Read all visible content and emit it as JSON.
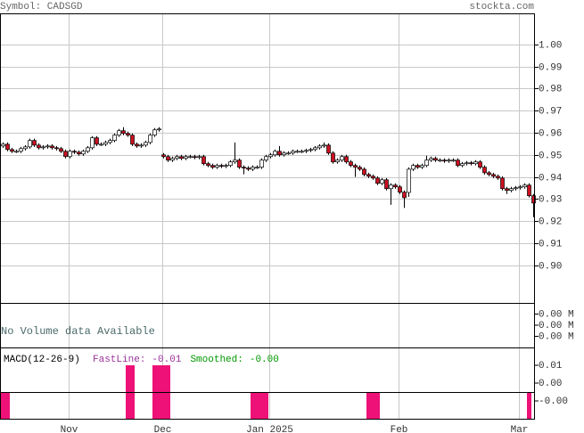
{
  "header": {
    "symbol": "Symbol: CADSGD",
    "site": "stockta.com"
  },
  "chart_data": [
    {
      "type": "candlestick",
      "up_color": "#ffffff",
      "down_color": "#cc1122",
      "grid": true,
      "ylim": [
        0.883,
        1.014
      ],
      "yticks": [
        {
          "value": 0.9,
          "label": "0.90"
        },
        0.91,
        0.92,
        0.93,
        0.94,
        0.95,
        0.96,
        0.97,
        0.98,
        0.99,
        {
          "value": 1,
          "label": "1.00"
        }
      ],
      "categories": [
        null,
        null,
        null,
        null,
        null,
        null,
        null,
        null,
        null,
        null,
        null,
        null,
        null,
        null,
        null,
        "Nov",
        null,
        null,
        null,
        null,
        null,
        null,
        null,
        null,
        null,
        null,
        null,
        null,
        null,
        null,
        null,
        null,
        null,
        null,
        null,
        null,
        "Dec",
        null,
        null,
        null,
        null,
        null,
        null,
        null,
        null,
        null,
        null,
        null,
        null,
        null,
        null,
        null,
        null,
        null,
        null,
        null,
        null,
        null,
        null,
        null,
        "Jan 2025",
        null,
        null,
        null,
        null,
        null,
        null,
        null,
        null,
        null,
        null,
        null,
        null,
        null,
        null,
        null,
        null,
        null,
        null,
        null,
        null,
        null,
        null,
        null,
        null,
        null,
        null,
        null,
        null,
        "Feb",
        null,
        null,
        null,
        null,
        null,
        null,
        null,
        null,
        null,
        null,
        null,
        null,
        null,
        null,
        null,
        null,
        null,
        null,
        null,
        null,
        null,
        null,
        null,
        null,
        null,
        null,
        "Mar",
        null,
        null,
        null
      ],
      "series": {
        "open": [
          0.954,
          0.9548,
          0.9524,
          0.9516,
          0.9516,
          0.9528,
          0.9536,
          0.9565,
          0.9544,
          0.9532,
          0.9536,
          0.954,
          0.9532,
          0.9528,
          0.9516,
          0.9492,
          0.9516,
          0.9512,
          0.9504,
          0.9516,
          0.9532,
          0.9577,
          0.9548,
          0.9548,
          0.9556,
          0.9565,
          0.9589,
          0.9609,
          0.9597,
          0.9589,
          0.9548,
          0.954,
          0.9544,
          0.9556,
          0.9589,
          0.9613,
          0.95,
          0.9492,
          0.9476,
          0.9484,
          0.9492,
          0.9484,
          0.9492,
          0.9492,
          0.9488,
          0.9492,
          0.946,
          0.9452,
          0.9444,
          0.9452,
          0.9448,
          0.9452,
          0.9468,
          0.9476,
          0.9444,
          0.944,
          0.9435,
          0.9444,
          0.9444,
          0.9476,
          0.9492,
          0.95,
          0.9516,
          0.95,
          0.9508,
          0.9508,
          0.9516,
          0.9516,
          0.9516,
          0.952,
          0.9524,
          0.9532,
          0.954,
          0.9544,
          0.9508,
          0.9468,
          0.9476,
          0.9492,
          0.9468,
          0.9452,
          0.9444,
          0.9435,
          0.9411,
          0.9403,
          0.9395,
          0.9371,
          0.9387,
          0.9347,
          0.9363,
          0.9355,
          0.9331,
          0.933,
          0.9435,
          0.9452,
          0.9444,
          0.9452,
          0.9476,
          0.9484,
          0.9476,
          0.9476,
          0.9472,
          0.9476,
          0.9476,
          0.9452,
          0.946,
          0.9464,
          0.946,
          0.9468,
          0.9444,
          0.9419,
          0.9411,
          0.9403,
          0.9395,
          0.9347,
          0.9339,
          0.9347,
          0.9351,
          0.9355,
          0.9363,
          0.9315
        ],
        "high": [
          0.9556,
          0.9556,
          0.9532,
          0.9524,
          0.9536,
          0.9544,
          0.9573,
          0.9573,
          0.9552,
          0.9544,
          0.9548,
          0.9548,
          0.954,
          0.9536,
          0.9524,
          0.9524,
          0.9524,
          0.952,
          0.9524,
          0.954,
          0.9585,
          0.9585,
          0.9556,
          0.9564,
          0.9573,
          0.9597,
          0.9617,
          0.9625,
          0.9605,
          0.9597,
          0.9556,
          0.9552,
          0.9564,
          0.9597,
          0.9621,
          0.9625,
          0.9508,
          0.95,
          0.9492,
          0.95,
          0.95,
          0.95,
          0.95,
          0.95,
          0.95,
          0.95,
          0.9468,
          0.946,
          0.946,
          0.946,
          0.946,
          0.9476,
          0.9556,
          0.9484,
          0.9452,
          0.9448,
          0.9452,
          0.9452,
          0.9484,
          0.95,
          0.9508,
          0.9524,
          0.954,
          0.9516,
          0.9516,
          0.9524,
          0.9524,
          0.9524,
          0.9528,
          0.9532,
          0.954,
          0.9548,
          0.9556,
          0.9552,
          0.9516,
          0.9484,
          0.95,
          0.95,
          0.9476,
          0.946,
          0.9452,
          0.9443,
          0.9419,
          0.9411,
          0.9403,
          0.9395,
          0.9395,
          0.9371,
          0.9371,
          0.9363,
          0.9339,
          0.9443,
          0.946,
          0.946,
          0.946,
          0.9496,
          0.9492,
          0.9492,
          0.9484,
          0.9484,
          0.9484,
          0.9484,
          0.9484,
          0.9468,
          0.9472,
          0.9472,
          0.9476,
          0.9476,
          0.9452,
          0.9427,
          0.9419,
          0.9411,
          0.9403,
          0.9355,
          0.9355,
          0.9359,
          0.9363,
          0.9371,
          0.9371,
          0.9323
        ],
        "low": [
          0.9532,
          0.9516,
          0.9508,
          0.9508,
          0.9508,
          0.952,
          0.9528,
          0.9536,
          0.9524,
          0.9524,
          0.9528,
          0.9524,
          0.952,
          0.9508,
          0.9484,
          0.9484,
          0.9504,
          0.9496,
          0.9496,
          0.9508,
          0.9524,
          0.954,
          0.954,
          0.954,
          0.9548,
          0.9557,
          0.9581,
          0.9589,
          0.9581,
          0.954,
          0.9532,
          0.9532,
          0.9536,
          0.9548,
          0.9581,
          0.9605,
          0.9484,
          0.9468,
          0.9468,
          0.9476,
          0.9476,
          0.9476,
          0.9484,
          0.948,
          0.948,
          0.9452,
          0.9444,
          0.9436,
          0.9436,
          0.944,
          0.944,
          0.9444,
          0.946,
          0.9436,
          0.9412,
          0.9427,
          0.9427,
          0.9436,
          0.9436,
          0.9468,
          0.9484,
          0.9492,
          0.9492,
          0.9492,
          0.95,
          0.95,
          0.9508,
          0.9508,
          0.9508,
          0.9512,
          0.9516,
          0.9524,
          0.9532,
          0.95,
          0.946,
          0.946,
          0.9468,
          0.946,
          0.9444,
          0.94,
          0.9427,
          0.9403,
          0.9395,
          0.9387,
          0.9363,
          0.9363,
          0.9339,
          0.9274,
          0.9347,
          0.9323,
          0.926,
          0.931,
          0.9427,
          0.9436,
          0.9436,
          0.9444,
          0.9468,
          0.9468,
          0.9468,
          0.9464,
          0.9464,
          0.9468,
          0.9444,
          0.9444,
          0.9452,
          0.9452,
          0.9452,
          0.9436,
          0.9411,
          0.9403,
          0.9395,
          0.9387,
          0.9339,
          0.9323,
          0.9331,
          0.9339,
          0.9343,
          0.9347,
          0.9307,
          0.9218
        ],
        "close": [
          0.9548,
          0.9524,
          0.9516,
          0.9516,
          0.9528,
          0.9536,
          0.9565,
          0.9544,
          0.9532,
          0.9536,
          0.954,
          0.9532,
          0.9528,
          0.9516,
          0.9492,
          0.9516,
          0.9512,
          0.9504,
          0.9516,
          0.9532,
          0.9577,
          0.9548,
          0.9548,
          0.9556,
          0.9565,
          0.9589,
          0.9609,
          0.9597,
          0.9589,
          0.9548,
          0.954,
          0.9544,
          0.9556,
          0.9589,
          0.9613,
          0.9617,
          0.9492,
          0.9476,
          0.9484,
          0.9492,
          0.9484,
          0.9492,
          0.9492,
          0.9488,
          0.9492,
          0.946,
          0.9452,
          0.9444,
          0.9452,
          0.9448,
          0.9452,
          0.9468,
          0.9476,
          0.9444,
          0.944,
          0.9435,
          0.9444,
          0.9444,
          0.9476,
          0.9492,
          0.95,
          0.9516,
          0.95,
          0.9508,
          0.9508,
          0.9516,
          0.9516,
          0.9516,
          0.952,
          0.9524,
          0.9532,
          0.954,
          0.9544,
          0.9508,
          0.9468,
          0.9476,
          0.9492,
          0.9468,
          0.9452,
          0.9444,
          0.9435,
          0.9411,
          0.9403,
          0.9395,
          0.9371,
          0.9387,
          0.9347,
          0.9363,
          0.9355,
          0.9331,
          0.9306,
          0.9435,
          0.9452,
          0.9444,
          0.9452,
          0.9476,
          0.9484,
          0.9476,
          0.9476,
          0.9472,
          0.9476,
          0.9476,
          0.9452,
          0.946,
          0.9464,
          0.946,
          0.9468,
          0.9444,
          0.9419,
          0.9411,
          0.9403,
          0.9395,
          0.9347,
          0.9339,
          0.9347,
          0.9351,
          0.9355,
          0.9363,
          0.9315,
          0.9282
        ]
      }
    },
    {
      "type": "volume",
      "title": "No Volume data Available",
      "ylim": [
        0,
        0.004
      ],
      "yticks": [
        {
          "value": 0.003,
          "label": "0.00 M"
        },
        {
          "value": 0.002,
          "label": "0.00 M"
        },
        {
          "value": 0.001,
          "label": "0.00 M"
        }
      ]
    },
    {
      "type": "macd",
      "title": "MACD(12-26-9)",
      "ylim": [
        -0.01,
        0.01
      ],
      "yticks": [
        {
          "value": 0.005,
          "label": "0.01"
        },
        {
          "value": 0,
          "label": "0.00"
        },
        {
          "value": -0.005,
          "label": "-0.00"
        }
      ],
      "lines": [
        {
          "name": "FastLine:",
          "color": "#993399",
          "value": -0.01
        },
        {
          "name": "Smoothed:",
          "color": "#009900",
          "value": -0.004,
          "value_label": "-0.00"
        }
      ],
      "histogram": {
        "color": "#ee1177",
        "values": [
          -0.0025,
          -0.0025,
          null,
          null,
          null,
          null,
          null,
          null,
          null,
          null,
          null,
          null,
          null,
          null,
          null,
          null,
          null,
          null,
          null,
          null,
          null,
          null,
          null,
          null,
          null,
          null,
          null,
          null,
          0.005,
          0.005,
          null,
          null,
          null,
          null,
          0.005,
          0.005,
          0.005,
          0.005,
          null,
          null,
          null,
          null,
          null,
          null,
          null,
          null,
          null,
          null,
          null,
          null,
          null,
          null,
          null,
          null,
          null,
          null,
          -0.0025,
          -0.0025,
          -0.0025,
          -0.0025,
          null,
          null,
          null,
          null,
          null,
          null,
          null,
          null,
          null,
          null,
          null,
          null,
          null,
          null,
          null,
          null,
          null,
          null,
          null,
          null,
          null,
          null,
          -0.0025,
          -0.0025,
          -0.0025,
          null,
          null,
          null,
          null,
          null,
          null,
          null,
          null,
          null,
          null,
          null,
          null,
          null,
          null,
          null,
          null,
          null,
          null,
          null,
          null,
          null,
          null,
          null,
          null,
          null,
          null,
          null,
          null,
          null,
          null,
          null,
          null,
          null,
          -0.0025
        ]
      }
    }
  ]
}
